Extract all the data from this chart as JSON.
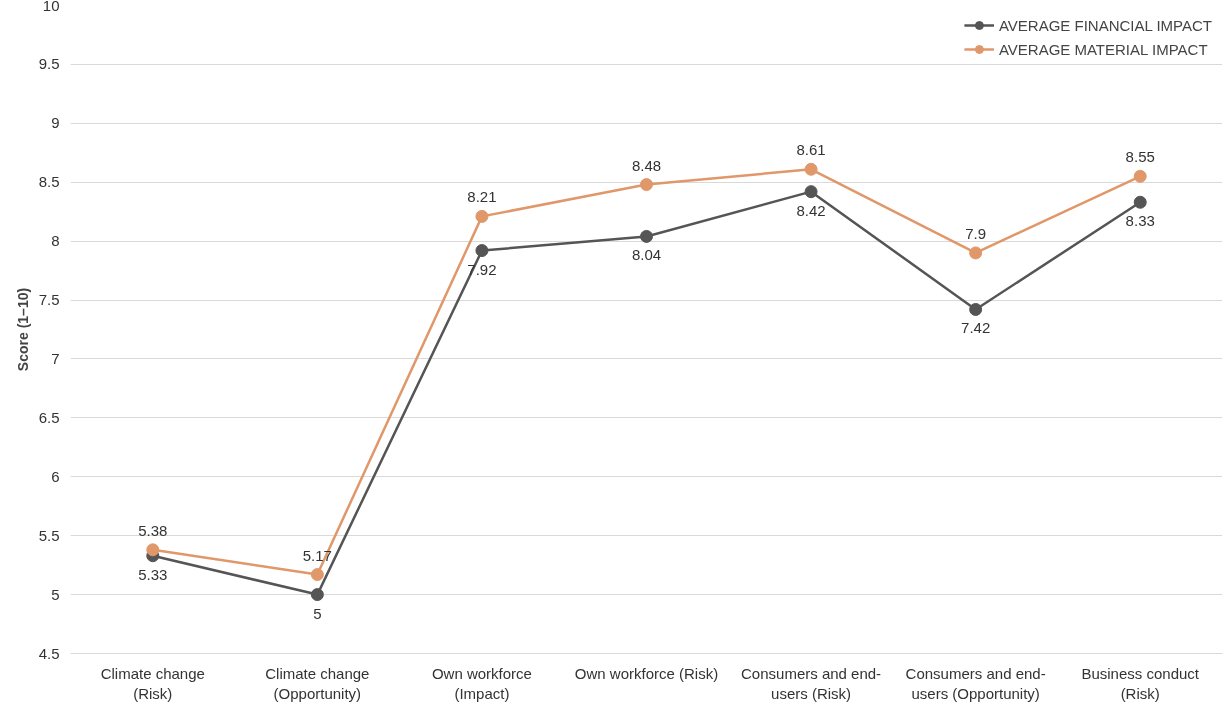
{
  "chart_data": {
    "type": "line",
    "ylabel": "Score (1–10)",
    "categories": [
      "Climate change (Risk)",
      "Climate change (Opportunity)",
      "Own workforce (Impact)",
      "Own workforce (Risk)",
      "Consumers and end-users (Risk)",
      "Consumers and end-users (Opportunity)",
      "Business conduct (Risk)"
    ],
    "series": [
      {
        "name": "AVERAGE FINANCIAL IMPACT",
        "color": "#555555",
        "values": [
          5.33,
          5,
          7.92,
          8.04,
          8.42,
          7.42,
          8.33
        ]
      },
      {
        "name": "AVERAGE MATERIAL IMPACT",
        "color": "#e0976a",
        "values": [
          5.38,
          5.17,
          8.21,
          8.48,
          8.61,
          7.9,
          8.55
        ]
      }
    ],
    "ylim": [
      4.5,
      10
    ],
    "yticks": [
      4.5,
      5,
      5.5,
      6,
      6.5,
      7,
      7.5,
      8,
      8.5,
      9,
      9.5,
      10
    ],
    "grid": "y",
    "legend": "top right",
    "marker": "circle",
    "line_style": "solid",
    "data_labels": true
  }
}
